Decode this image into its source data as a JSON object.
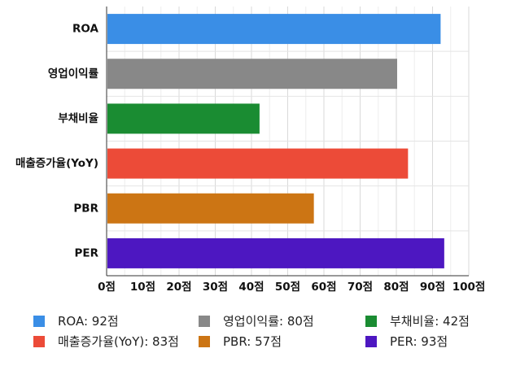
{
  "chart_data": {
    "type": "bar",
    "orientation": "horizontal",
    "categories": [
      "ROA",
      "영업이익률",
      "부채비율",
      "매출증가율(YoY)",
      "PBR",
      "PER"
    ],
    "values": [
      92,
      80,
      42,
      83,
      57,
      93
    ],
    "colors": [
      "#3a8ee6",
      "#888888",
      "#1a8c32",
      "#ec4b38",
      "#cc7514",
      "#4d17c1"
    ],
    "tick_values": [
      0,
      10,
      20,
      30,
      40,
      50,
      60,
      70,
      80,
      90,
      100
    ],
    "tick_labels": [
      "0점",
      "10점",
      "20점",
      "30점",
      "40점",
      "50점",
      "60점",
      "70점",
      "80점",
      "90점",
      "100점"
    ],
    "xlim": [
      0,
      100
    ],
    "grid": true,
    "legend_position": "bottom",
    "legend": [
      "ROA: 92점",
      "영업이익률: 80점",
      "부채비율: 42점",
      "매출증가율(YoY): 83점",
      "PBR: 57점",
      "PER: 93점"
    ]
  }
}
